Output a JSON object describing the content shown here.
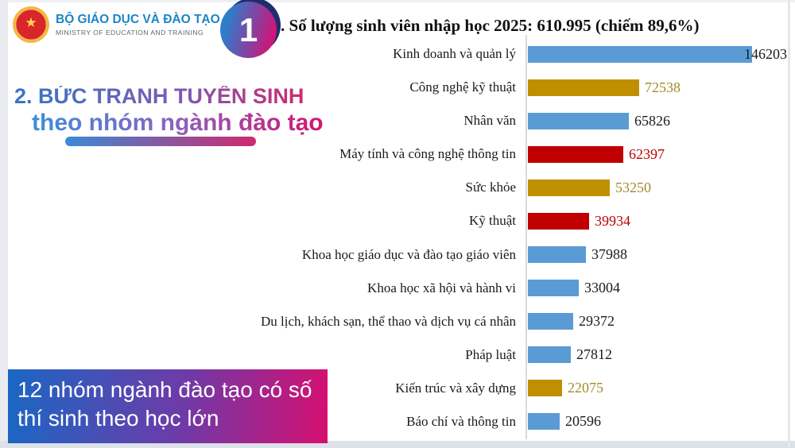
{
  "logo": {
    "title": "BỘ GIÁO DỤC VÀ ĐÀO TẠO",
    "subtitle": "MINISTRY OF EDUCATION AND TRAINING",
    "emblem_star": "★"
  },
  "badge": {
    "number": "1"
  },
  "header": {
    "title": ". Số lượng sinh viên nhập học 2025: 610.995 (chiếm 89,6%)"
  },
  "section": {
    "heading_line1": "2. BỨC TRANH TUYỂN SINH",
    "heading_line2": "theo nhóm ngành đào tạo"
  },
  "callout": {
    "text": "12 nhóm ngành đào tạo có số thí sinh theo học lớn"
  },
  "colors": {
    "bar_blue": "#5B9BD5",
    "bar_gold": "#BF8F00",
    "bar_red": "#C00000",
    "gradient_blue": "#2f7cc9",
    "gradient_pink": "#d90f6f",
    "logo_blue": "#1b85c6"
  },
  "chart_data": {
    "type": "bar",
    "orientation": "horizontal",
    "title": "Số lượng sinh viên nhập học 2025: 610.995 (chiếm 89,6%)",
    "xlabel": "",
    "ylabel": "",
    "xlim": [
      0,
      150000
    ],
    "grid": false,
    "legend": false,
    "categories": [
      "Kinh doanh và quản lý",
      "Công nghệ kỹ thuật",
      "Nhân văn",
      "Máy tính và công nghệ thông tin",
      "Sức khỏe",
      "Kỹ thuật",
      "Khoa học giáo dục và đào tạo giáo viên",
      "Khoa học xã hội và hành vi",
      "Du lịch, khách sạn, thể thao và dịch vụ cá nhân",
      "Pháp luật",
      "Kiến trúc và xây dựng",
      "Báo chí và thông tin"
    ],
    "values": [
      146203,
      72538,
      65826,
      62397,
      53250,
      39934,
      37988,
      33004,
      29372,
      27812,
      22075,
      20596
    ],
    "bar_colors": [
      "#5B9BD5",
      "#BF8F00",
      "#5B9BD5",
      "#C00000",
      "#BF8F00",
      "#C00000",
      "#5B9BD5",
      "#5B9BD5",
      "#5B9BD5",
      "#5B9BD5",
      "#BF8F00",
      "#5B9BD5"
    ],
    "value_label_colors": [
      "#1a1a1a",
      "#a08b2a",
      "#1a1a1a",
      "#C00000",
      "#a08b2a",
      "#C00000",
      "#1a1a1a",
      "#1a1a1a",
      "#1a1a1a",
      "#1a1a1a",
      "#a08b2a",
      "#1a1a1a"
    ]
  }
}
